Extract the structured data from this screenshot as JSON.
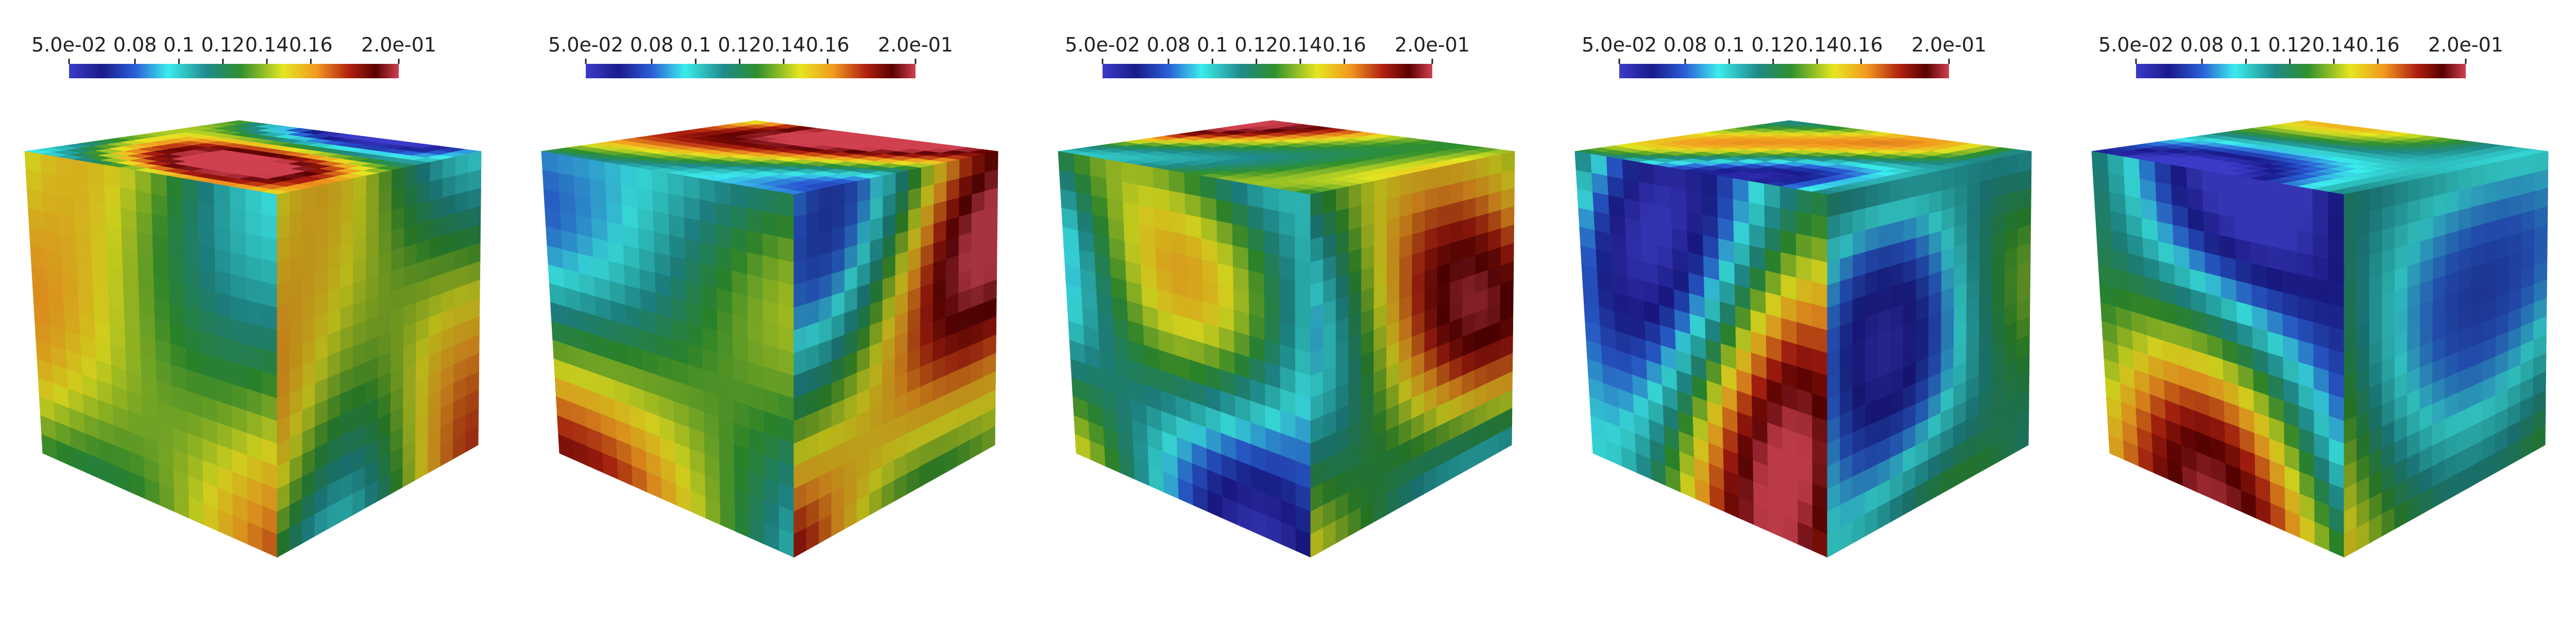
{
  "panels": [
    {
      "colorbar": {
        "range": [
          0.05,
          0.2
        ],
        "ticks": [
          {
            "value": 0.05,
            "label": "5.0e-02"
          },
          0.08,
          0.1,
          0.12,
          0.14,
          0.16,
          {
            "value": 0.2,
            "label": "2.0e-01"
          }
        ]
      }
    },
    {
      "colorbar": {
        "range": [
          0.05,
          0.2
        ],
        "ticks": [
          {
            "value": 0.05,
            "label": "5.0e-02"
          },
          0.08,
          0.1,
          0.12,
          0.14,
          0.16,
          {
            "value": 0.2,
            "label": "2.0e-01"
          }
        ]
      }
    },
    {
      "colorbar": {
        "range": [
          0.05,
          0.2
        ],
        "ticks": [
          {
            "value": 0.05,
            "label": "5.0e-02"
          },
          0.08,
          0.1,
          0.12,
          0.14,
          0.16,
          {
            "value": 0.2,
            "label": "2.0e-01"
          }
        ]
      }
    },
    {
      "colorbar": {
        "range": [
          0.05,
          0.2
        ],
        "ticks": [
          {
            "value": 0.05,
            "label": "5.0e-02"
          },
          0.08,
          0.1,
          0.12,
          0.14,
          0.16,
          {
            "value": 0.2,
            "label": "2.0e-01"
          }
        ]
      }
    },
    {
      "colorbar": {
        "range": [
          0.05,
          0.2
        ],
        "ticks": [
          {
            "value": 0.05,
            "label": "5.0e-02"
          },
          0.08,
          0.1,
          0.12,
          0.14,
          0.16,
          {
            "value": 0.2,
            "label": "2.0e-01"
          }
        ]
      }
    }
  ]
}
